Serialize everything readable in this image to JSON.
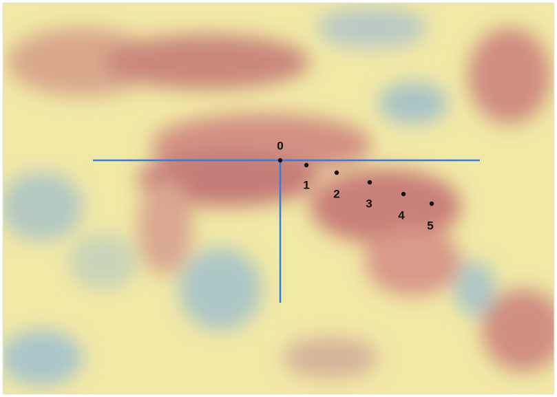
{
  "points": [
    {
      "label": "0"
    },
    {
      "label": "1"
    },
    {
      "label": "2"
    },
    {
      "label": "3"
    },
    {
      "label": "4"
    },
    {
      "label": "5"
    }
  ]
}
